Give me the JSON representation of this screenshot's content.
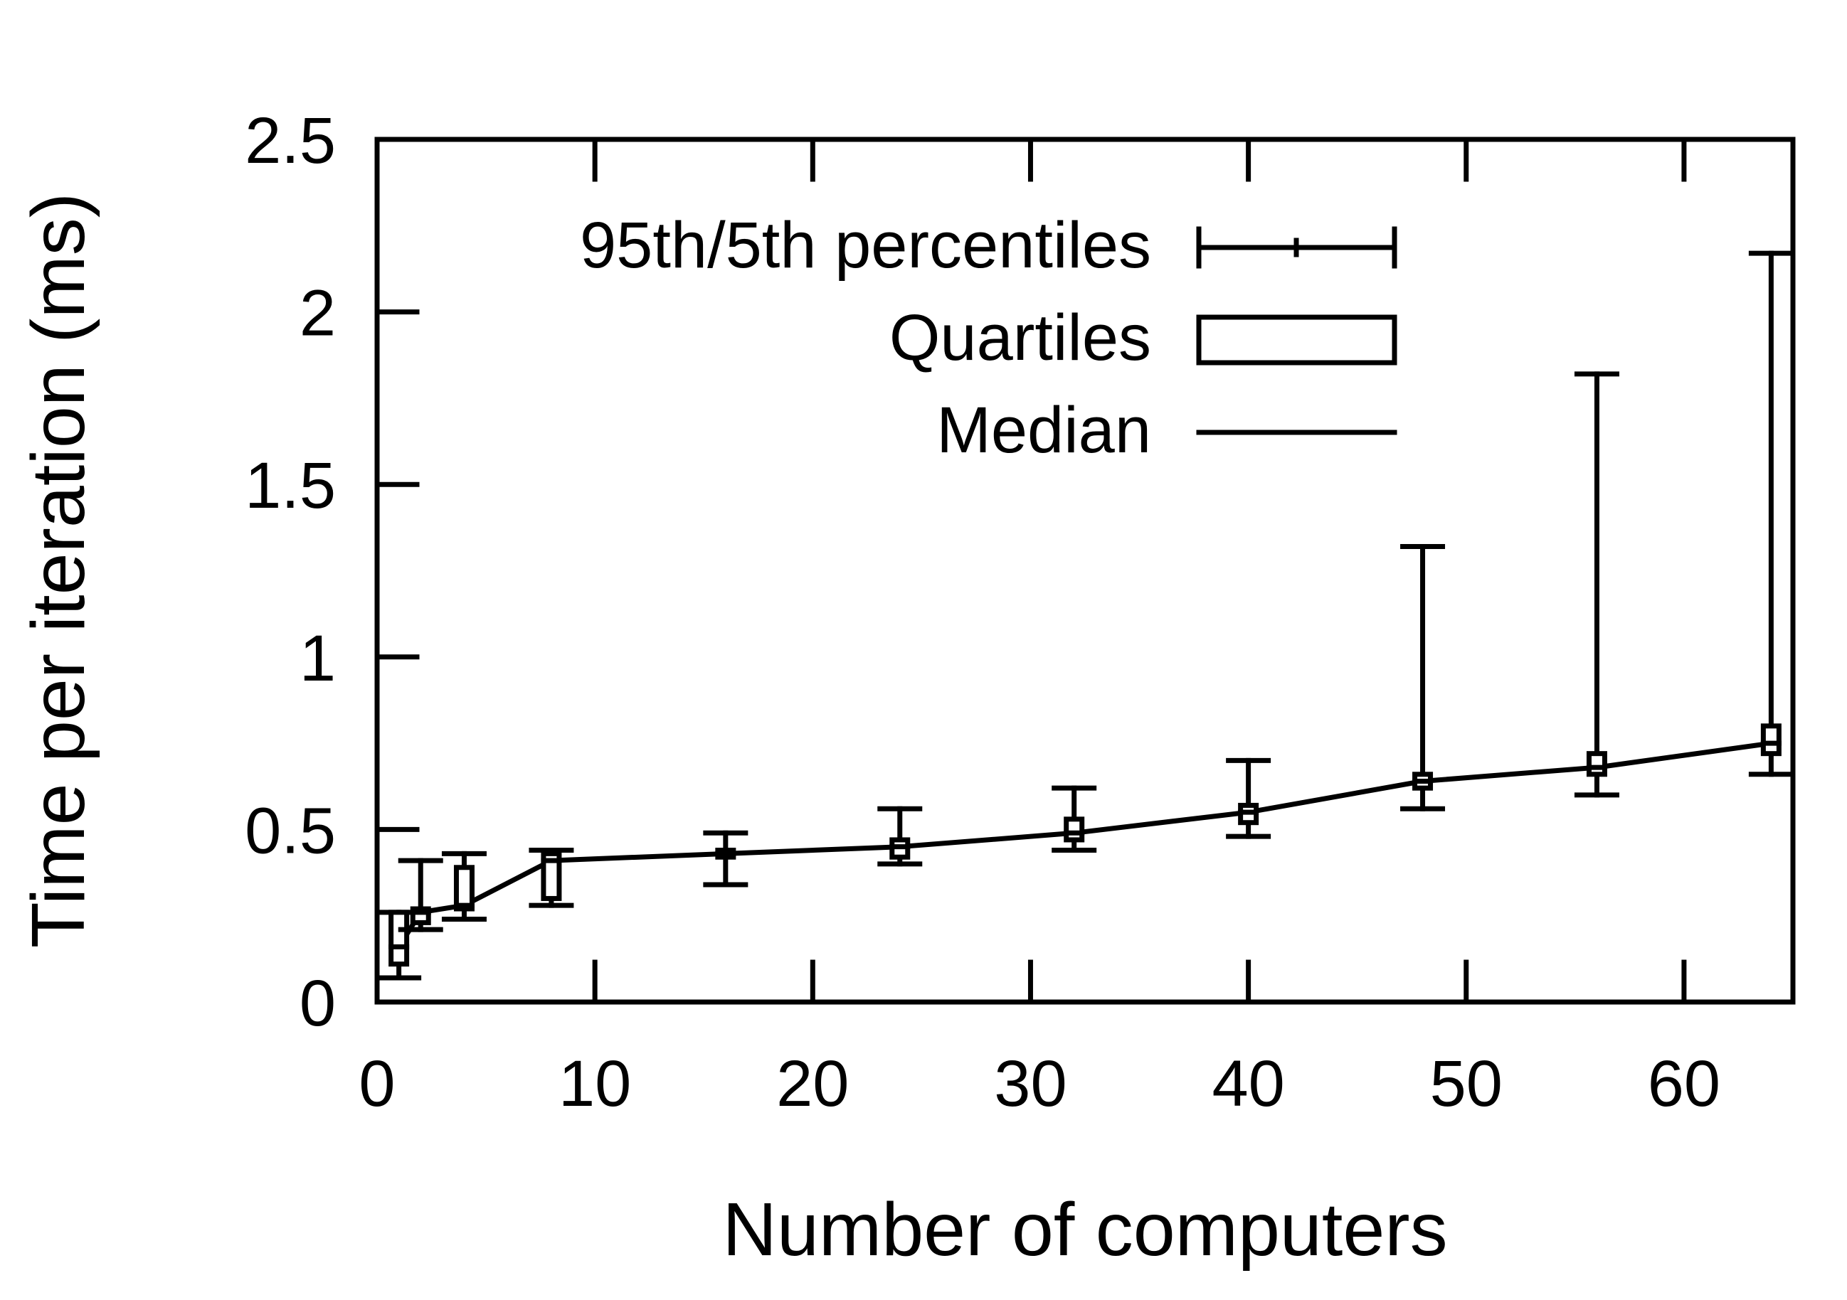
{
  "chart_data": {
    "type": "box",
    "xlabel": "Number of computers",
    "ylabel": "Time per iteration (ms)",
    "xlim": [
      0,
      65
    ],
    "ylim": [
      0,
      2.5
    ],
    "xticks": [
      0,
      10,
      20,
      30,
      40,
      50,
      60
    ],
    "yticks": [
      0,
      0.5,
      1,
      1.5,
      2,
      2.5
    ],
    "xtick_labels": [
      "0",
      "10",
      "20",
      "30",
      "40",
      "50",
      "60"
    ],
    "ytick_labels": [
      "0",
      "0.5",
      "1",
      "1.5",
      "2",
      "2.5"
    ],
    "grid": false,
    "legend_position": "top-right",
    "legend": [
      {
        "key": "whisker",
        "label": "95th/5th percentiles"
      },
      {
        "key": "box",
        "label": "Quartiles"
      },
      {
        "key": "median",
        "label": "Median"
      }
    ],
    "points": [
      {
        "x": 1,
        "p5": 0.07,
        "q1": 0.11,
        "median": 0.16,
        "q3": 0.26,
        "p95": 0.26
      },
      {
        "x": 2,
        "p5": 0.21,
        "q1": 0.23,
        "median": 0.26,
        "q3": 0.27,
        "p95": 0.41
      },
      {
        "x": 4,
        "p5": 0.24,
        "q1": 0.27,
        "median": 0.28,
        "q3": 0.39,
        "p95": 0.43
      },
      {
        "x": 8,
        "p5": 0.28,
        "q1": 0.3,
        "median": 0.41,
        "q3": 0.43,
        "p95": 0.44
      },
      {
        "x": 16,
        "p5": 0.34,
        "q1": 0.42,
        "median": 0.43,
        "q3": 0.44,
        "p95": 0.49
      },
      {
        "x": 24,
        "p5": 0.4,
        "q1": 0.42,
        "median": 0.45,
        "q3": 0.47,
        "p95": 0.56
      },
      {
        "x": 32,
        "p5": 0.44,
        "q1": 0.47,
        "median": 0.49,
        "q3": 0.53,
        "p95": 0.62
      },
      {
        "x": 40,
        "p5": 0.48,
        "q1": 0.52,
        "median": 0.55,
        "q3": 0.57,
        "p95": 0.7
      },
      {
        "x": 48,
        "p5": 0.56,
        "q1": 0.62,
        "median": 0.64,
        "q3": 0.66,
        "p95": 1.32
      },
      {
        "x": 56,
        "p5": 0.6,
        "q1": 0.66,
        "median": 0.68,
        "q3": 0.72,
        "p95": 1.82
      },
      {
        "x": 64,
        "p5": 0.66,
        "q1": 0.72,
        "median": 0.75,
        "q3": 0.8,
        "p95": 2.17
      }
    ]
  }
}
